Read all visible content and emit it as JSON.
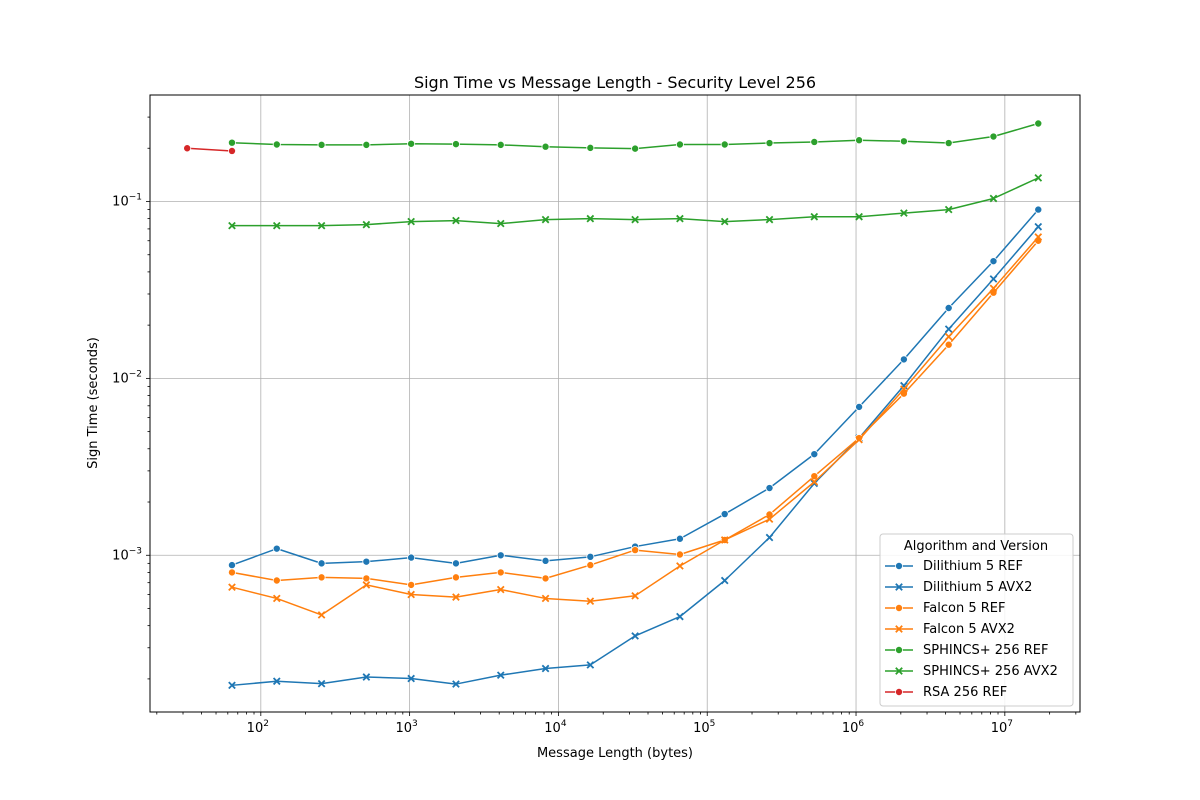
{
  "chart_data": {
    "type": "line",
    "title": "Sign Time vs Message Length - Security Level 256",
    "xlabel": "Message Length (bytes)",
    "ylabel": "Sign Time (seconds)",
    "xscale": "log",
    "yscale": "log",
    "xlim": [
      18,
      32000000
    ],
    "ylim": [
      0.00013,
      0.4
    ],
    "xticks": [
      {
        "value": 100,
        "mantissa": "10",
        "exp": "2"
      },
      {
        "value": 1000,
        "mantissa": "10",
        "exp": "3"
      },
      {
        "value": 10000,
        "mantissa": "10",
        "exp": "4"
      },
      {
        "value": 100000,
        "mantissa": "10",
        "exp": "5"
      },
      {
        "value": 1000000,
        "mantissa": "10",
        "exp": "6"
      },
      {
        "value": 10000000,
        "mantissa": "10",
        "exp": "7"
      }
    ],
    "yticks": [
      {
        "value": 0.001,
        "mantissa": "10",
        "exp": "−3"
      },
      {
        "value": 0.01,
        "mantissa": "10",
        "exp": "−2"
      },
      {
        "value": 0.1,
        "mantissa": "10",
        "exp": "−1"
      }
    ],
    "grid": true,
    "legend": {
      "title": "Algorithm and Version",
      "position": "lower-right"
    },
    "x": [
      64,
      128,
      256,
      512,
      1024,
      2048,
      4096,
      8192,
      16384,
      32768,
      65536,
      131072,
      262144,
      524288,
      1048576,
      2097152,
      4194304,
      8388608,
      16777216
    ],
    "series": [
      {
        "name": "Dilithium 5 REF",
        "color": "#1f77b4",
        "marker": "circle",
        "values": [
          0.00088,
          0.00109,
          0.0009,
          0.00092,
          0.00097,
          0.0009,
          0.001,
          0.00093,
          0.00098,
          0.00112,
          0.00124,
          0.00171,
          0.0024,
          0.00373,
          0.0069,
          0.0128,
          0.025,
          0.046,
          0.09
        ]
      },
      {
        "name": "Dilithium 5 AVX2",
        "color": "#1f77b4",
        "marker": "x",
        "values": [
          0.000184,
          0.000194,
          0.000188,
          0.000205,
          0.000201,
          0.000187,
          0.00021,
          0.000229,
          0.00024,
          0.00035,
          0.00045,
          0.00072,
          0.00126,
          0.00255,
          0.0046,
          0.0091,
          0.019,
          0.0365,
          0.072
        ]
      },
      {
        "name": "Falcon 5 REF",
        "color": "#ff7f0e",
        "marker": "circle",
        "values": [
          0.0008,
          0.00072,
          0.00075,
          0.00074,
          0.00068,
          0.00075,
          0.0008,
          0.00074,
          0.00088,
          0.00107,
          0.00101,
          0.00122,
          0.0017,
          0.0028,
          0.0046,
          0.0082,
          0.0155,
          0.0305,
          0.06
        ]
      },
      {
        "name": "Falcon 5 AVX2",
        "color": "#ff7f0e",
        "marker": "x",
        "values": [
          0.00066,
          0.00057,
          0.00046,
          0.00068,
          0.0006,
          0.00058,
          0.00064,
          0.00057,
          0.00055,
          0.00059,
          0.00087,
          0.00122,
          0.0016,
          0.0026,
          0.0045,
          0.0087,
          0.0172,
          0.0323,
          0.063
        ]
      },
      {
        "name": "SPHINCS+ 256 REF",
        "color": "#2ca02c",
        "marker": "circle",
        "values": [
          0.215,
          0.21,
          0.209,
          0.209,
          0.212,
          0.211,
          0.209,
          0.204,
          0.201,
          0.199,
          0.21,
          0.21,
          0.214,
          0.217,
          0.222,
          0.219,
          0.214,
          0.233,
          0.276
        ]
      },
      {
        "name": "SPHINCS+ 256 AVX2",
        "color": "#2ca02c",
        "marker": "x",
        "values": [
          0.073,
          0.073,
          0.073,
          0.074,
          0.077,
          0.078,
          0.075,
          0.079,
          0.08,
          0.079,
          0.08,
          0.077,
          0.079,
          0.082,
          0.082,
          0.086,
          0.09,
          0.104,
          0.136
        ]
      },
      {
        "name": "RSA 256 REF",
        "color": "#d62728",
        "marker": "circle",
        "x": [
          32,
          64
        ],
        "values": [
          0.2,
          0.193
        ]
      }
    ]
  }
}
